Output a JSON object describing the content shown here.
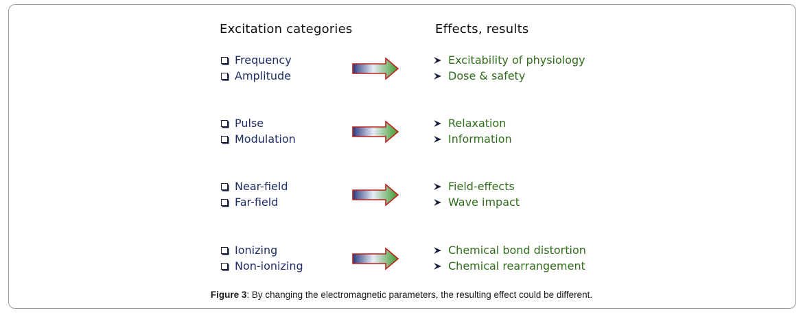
{
  "headers": {
    "left": "Excitation categories",
    "right": "Effects, results"
  },
  "groups": [
    {
      "categories": [
        "Frequency",
        "Amplitude"
      ],
      "effects": [
        "Excitability of physiology",
        "Dose & safety"
      ]
    },
    {
      "categories": [
        "Pulse",
        "Modulation"
      ],
      "effects": [
        "Relaxation",
        "Information"
      ]
    },
    {
      "categories": [
        "Near-field",
        "Far-field"
      ],
      "effects": [
        "Field-effects",
        "Wave impact"
      ]
    },
    {
      "categories": [
        "Ionizing",
        "Non-ionizing"
      ],
      "effects": [
        "Chemical bond distortion",
        "Chemical rearrangement"
      ]
    }
  ],
  "caption": {
    "label": "Figure 3",
    "text": ":  By changing the electromagnetic parameters, the resulting effect could be different."
  },
  "icons": {
    "category_bullet": "checkbox-icon",
    "effect_bullet": "arrowhead-check-icon",
    "connector": "gradient-arrow-icon"
  },
  "colors": {
    "category_text": "#1f2c66",
    "effect_text": "#2f6b1a",
    "arrow_gradient_start": "#2a3a7c",
    "arrow_gradient_mid": "#e8ecf6",
    "arrow_gradient_end": "#3c9a2c",
    "arrow_outline": "#c0201c"
  }
}
